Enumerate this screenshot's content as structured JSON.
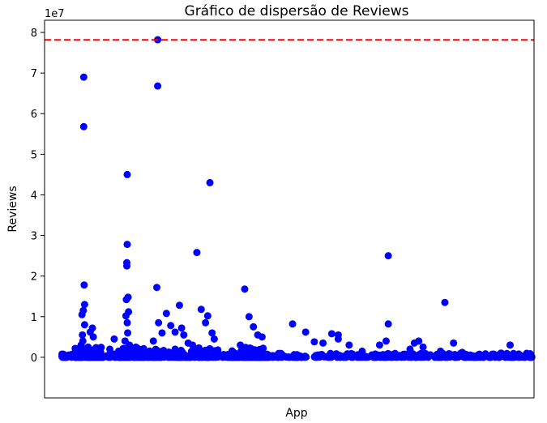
{
  "chart_data": {
    "type": "scatter",
    "title": "Gráfico de dispersão de Reviews",
    "xlabel": "App",
    "ylabel": "Reviews",
    "y_offset_text": "1e7",
    "ylim": [
      -1.0,
      8.3
    ],
    "xlim": [
      -400,
      10850
    ],
    "x_ticks_visible": false,
    "yticks": [
      0,
      1,
      2,
      3,
      4,
      5,
      6,
      7,
      8
    ],
    "ytick_labels": [
      "0",
      "1",
      "2",
      "3",
      "4",
      "5",
      "6",
      "7",
      "8"
    ],
    "point_color": "#0000ff",
    "hline": {
      "y": 7.8158,
      "color": "#ff0000",
      "style": "dashed"
    },
    "units_note": "y values in units of 1e7 reviews",
    "points": [
      [
        500,
        6.9
      ],
      [
        500,
        5.68
      ],
      [
        510,
        1.78
      ],
      [
        520,
        1.3
      ],
      [
        490,
        1.15
      ],
      [
        460,
        1.05
      ],
      [
        470,
        0.55
      ],
      [
        480,
        0.4
      ],
      [
        520,
        0.8
      ],
      [
        440,
        0.3
      ],
      [
        430,
        0.12
      ],
      [
        700,
        0.72
      ],
      [
        650,
        0.62
      ],
      [
        720,
        0.5
      ],
      [
        600,
        0.25
      ],
      [
        1200,
        0.45
      ],
      [
        1100,
        0.2
      ],
      [
        1300,
        0.15
      ],
      [
        1500,
        4.5
      ],
      [
        1500,
        2.78
      ],
      [
        1490,
        2.33
      ],
      [
        1490,
        2.25
      ],
      [
        1520,
        1.48
      ],
      [
        1480,
        1.42
      ],
      [
        1530,
        1.12
      ],
      [
        1470,
        1.02
      ],
      [
        1500,
        0.85
      ],
      [
        1510,
        0.6
      ],
      [
        1450,
        0.4
      ],
      [
        1550,
        0.3
      ],
      [
        1600,
        0.2
      ],
      [
        1400,
        0.15
      ],
      [
        1700,
        0.25
      ],
      [
        1650,
        0.1
      ],
      [
        2200,
        7.82
      ],
      [
        2200,
        6.68
      ],
      [
        2180,
        1.72
      ],
      [
        2220,
        0.85
      ],
      [
        2300,
        0.6
      ],
      [
        2100,
        0.4
      ],
      [
        2400,
        1.08
      ],
      [
        2500,
        0.78
      ],
      [
        2600,
        0.62
      ],
      [
        2700,
        1.28
      ],
      [
        2750,
        0.72
      ],
      [
        2800,
        0.55
      ],
      [
        2900,
        0.35
      ],
      [
        3100,
        2.58
      ],
      [
        3200,
        1.18
      ],
      [
        3300,
        0.85
      ],
      [
        3350,
        1.02
      ],
      [
        3400,
        4.3
      ],
      [
        3450,
        0.6
      ],
      [
        3500,
        0.45
      ],
      [
        3000,
        0.3
      ],
      [
        2600,
        0.2
      ],
      [
        4200,
        1.68
      ],
      [
        4300,
        1.0
      ],
      [
        4400,
        0.75
      ],
      [
        4500,
        0.55
      ],
      [
        4600,
        0.5
      ],
      [
        4100,
        0.3
      ],
      [
        5300,
        0.82
      ],
      [
        5600,
        0.62
      ],
      [
        5800,
        0.38
      ],
      [
        6000,
        0.35
      ],
      [
        6200,
        0.58
      ],
      [
        6350,
        0.55
      ],
      [
        6350,
        0.45
      ],
      [
        6600,
        0.3
      ],
      [
        6900,
        0.15
      ],
      [
        7500,
        2.5
      ],
      [
        7500,
        0.82
      ],
      [
        7450,
        0.4
      ],
      [
        7300,
        0.3
      ],
      [
        8200,
        0.4
      ],
      [
        8100,
        0.35
      ],
      [
        8300,
        0.25
      ],
      [
        8000,
        0.2
      ],
      [
        8800,
        1.35
      ],
      [
        8700,
        0.15
      ],
      [
        9000,
        0.35
      ],
      [
        9200,
        0.12
      ],
      [
        10300,
        0.3
      ],
      [
        10100,
        0.1
      ],
      [
        10500,
        0.08
      ]
    ],
    "baseline_band": {
      "x_range": [
        0,
        10840
      ],
      "y_range": [
        0,
        0.1
      ],
      "description": "dense cluster of low-review apps"
    }
  }
}
